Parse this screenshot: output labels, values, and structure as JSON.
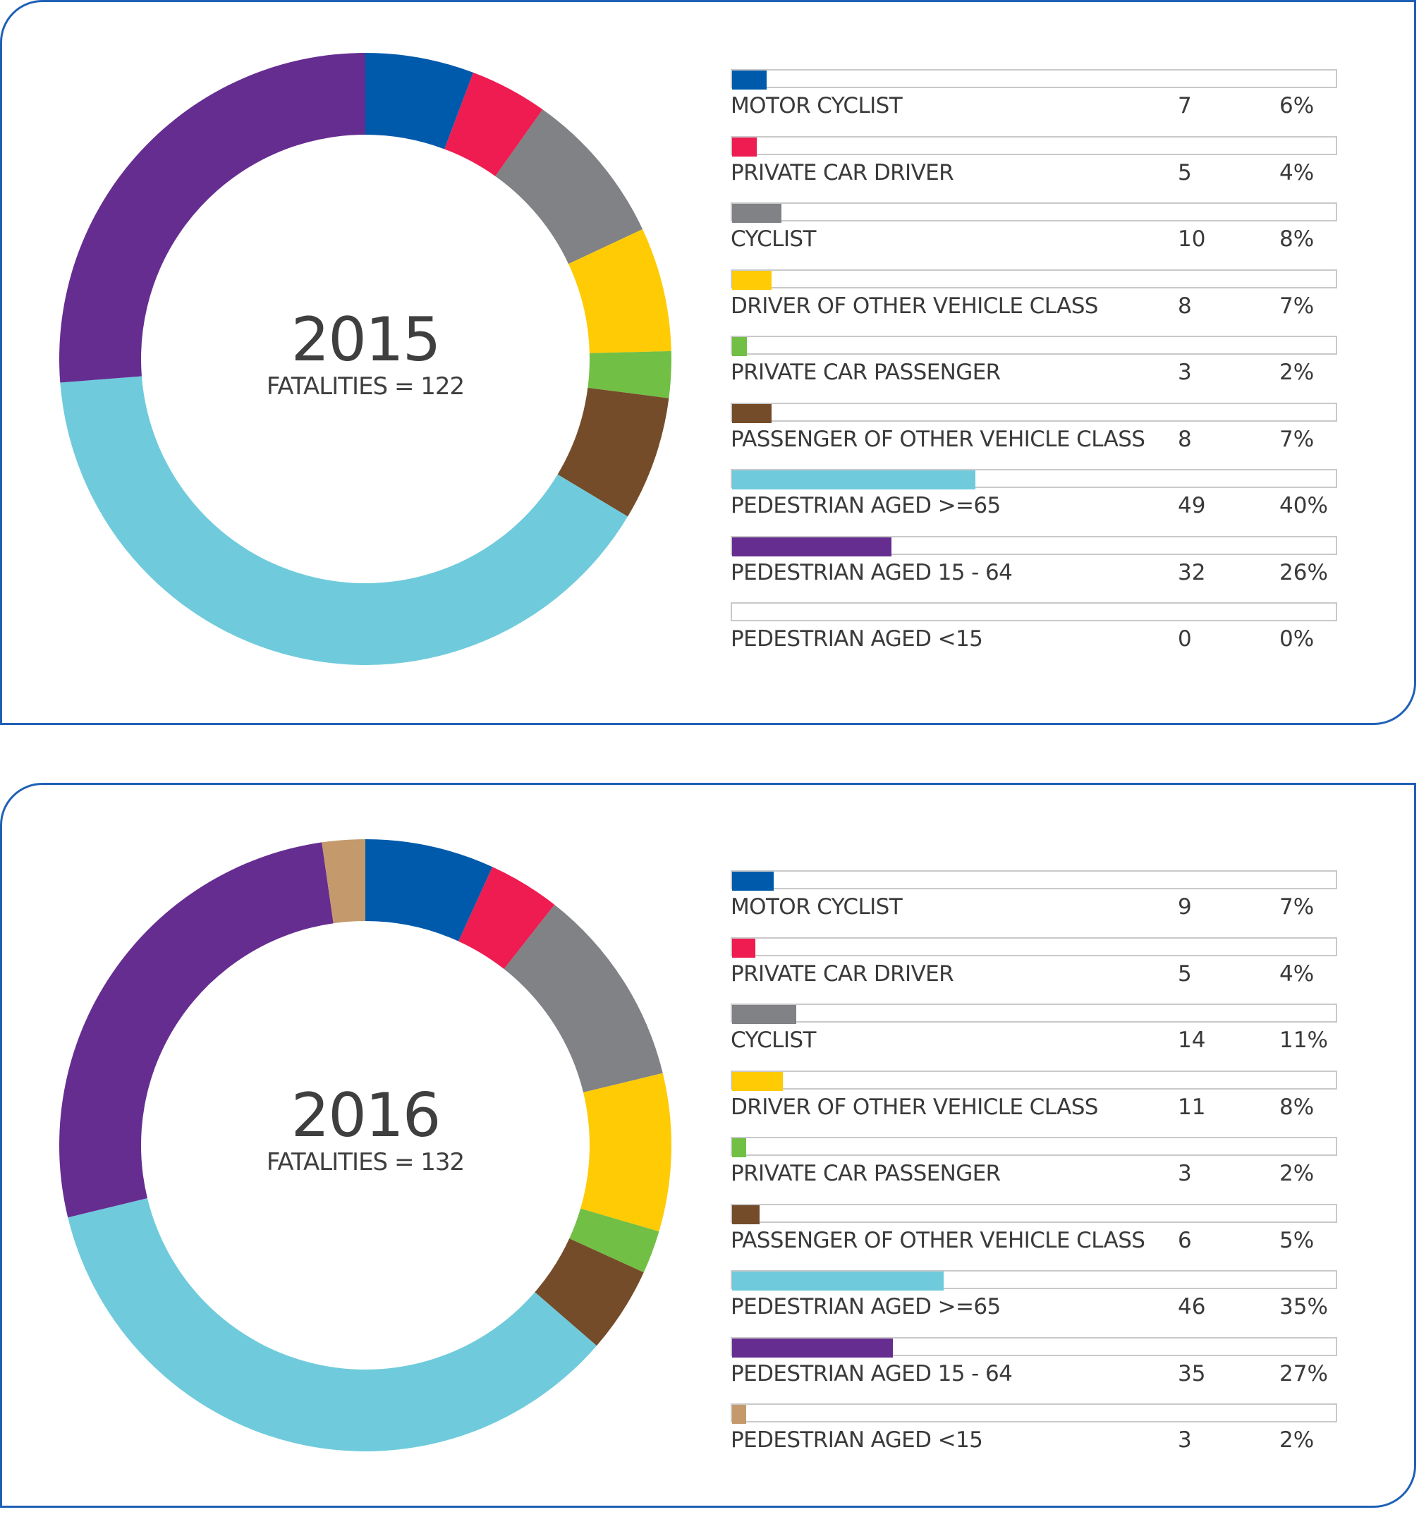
{
  "chart_data": [
    {
      "type": "pie",
      "title": "2015",
      "subtitle": "FATALITIES = 122",
      "categories": [
        "MOTOR CYCLIST",
        "PRIVATE CAR DRIVER",
        "CYCLIST",
        "DRIVER OF OTHER VEHICLE CLASS",
        "PRIVATE CAR PASSENGER",
        "PASSENGER OF OTHER VEHICLE CLASS",
        "PEDESTRIAN AGED >=65",
        "PEDESTRIAN AGED 15 - 64",
        "PEDESTRIAN AGED <15"
      ],
      "values": [
        7,
        5,
        10,
        8,
        3,
        8,
        49,
        32,
        0
      ],
      "percent_labels": [
        "6%",
        "4%",
        "8%",
        "7%",
        "2%",
        "7%",
        "40%",
        "26%",
        "0%"
      ],
      "colors": [
        "#005aab",
        "#ee1c50",
        "#808285",
        "#ffcb05",
        "#71bf44",
        "#754c29",
        "#6fcbdc",
        "#662d91",
        "#c49a6c"
      ]
    },
    {
      "type": "pie",
      "title": "2016",
      "subtitle": "FATALITIES = 132",
      "categories": [
        "MOTOR CYCLIST",
        "PRIVATE CAR DRIVER",
        "CYCLIST",
        "DRIVER OF OTHER VEHICLE CLASS",
        "PRIVATE CAR PASSENGER",
        "PASSENGER OF OTHER VEHICLE CLASS",
        "PEDESTRIAN AGED >=65",
        "PEDESTRIAN AGED 15 - 64",
        "PEDESTRIAN AGED <15"
      ],
      "values": [
        9,
        5,
        14,
        11,
        3,
        6,
        46,
        35,
        3
      ],
      "percent_labels": [
        "7%",
        "4%",
        "11%",
        "8%",
        "2%",
        "5%",
        "35%",
        "27%",
        "2%"
      ],
      "colors": [
        "#005aab",
        "#ee1c50",
        "#808285",
        "#ffcb05",
        "#71bf44",
        "#754c29",
        "#6fcbdc",
        "#662d91",
        "#c49a6c"
      ]
    }
  ]
}
